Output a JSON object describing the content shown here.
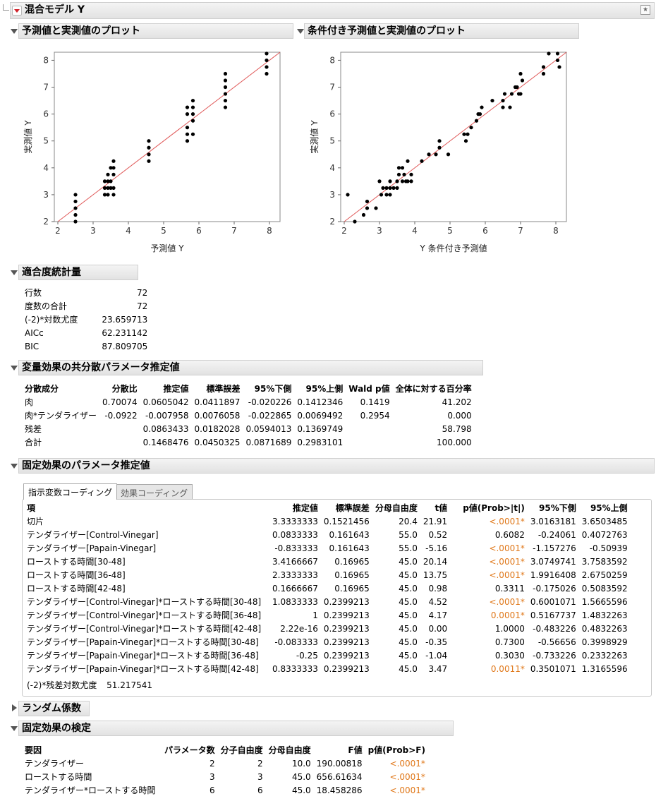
{
  "report": {
    "title": "混合モデル Y"
  },
  "plot1": {
    "title": "予測値と実測値のプロット",
    "xlabel": "予測値 Y",
    "ylabel": "実測値 Y"
  },
  "plot2": {
    "title": "条件付き予測値と実測値のプロット",
    "xlabel": "Y 条件付き予測値",
    "ylabel": "実測値 Y"
  },
  "chart_data": [
    {
      "type": "scatter",
      "title": "予測値と実測値のプロット",
      "xlabel": "予測値 Y",
      "ylabel": "実測値 Y",
      "xlim": [
        1.9,
        8.3
      ],
      "ylim": [
        2,
        8.3
      ],
      "xticks": [
        "2",
        "3",
        "4",
        "5",
        "6",
        "7",
        "8"
      ],
      "yticks": [
        "2",
        "3",
        "4",
        "5",
        "6",
        "7",
        "8"
      ],
      "reference_line": "y = x",
      "points": [
        [
          2.5,
          2.0
        ],
        [
          2.5,
          2.25
        ],
        [
          2.5,
          2.5
        ],
        [
          2.5,
          2.75
        ],
        [
          2.5,
          3.0
        ],
        [
          3.33,
          3.0
        ],
        [
          3.33,
          3.25
        ],
        [
          3.33,
          3.5
        ],
        [
          3.42,
          3.0
        ],
        [
          3.42,
          3.25
        ],
        [
          3.42,
          3.5
        ],
        [
          3.42,
          3.75
        ],
        [
          3.5,
          3.25
        ],
        [
          3.5,
          3.5
        ],
        [
          3.5,
          4.0
        ],
        [
          3.58,
          3.25
        ],
        [
          3.58,
          3.75
        ],
        [
          3.58,
          4.0
        ],
        [
          3.58,
          4.25
        ],
        [
          3.58,
          3.0
        ],
        [
          4.58,
          4.25
        ],
        [
          4.58,
          4.5
        ],
        [
          4.58,
          4.75
        ],
        [
          4.58,
          5.0
        ],
        [
          5.67,
          5.0
        ],
        [
          5.67,
          5.25
        ],
        [
          5.67,
          5.5
        ],
        [
          5.67,
          6.0
        ],
        [
          5.67,
          6.25
        ],
        [
          5.83,
          5.25
        ],
        [
          5.83,
          5.75
        ],
        [
          5.83,
          6.0
        ],
        [
          5.83,
          6.25
        ],
        [
          5.83,
          6.5
        ],
        [
          6.75,
          6.25
        ],
        [
          6.75,
          6.5
        ],
        [
          6.75,
          6.75
        ],
        [
          6.75,
          7.0
        ],
        [
          6.75,
          7.25
        ],
        [
          6.75,
          7.5
        ],
        [
          7.92,
          7.5
        ],
        [
          7.92,
          7.75
        ],
        [
          7.92,
          8.0
        ],
        [
          7.92,
          8.25
        ]
      ]
    },
    {
      "type": "scatter",
      "title": "条件付き予測値と実測値のプロット",
      "xlabel": "Y 条件付き予測値",
      "ylabel": "実測値 Y",
      "xlim": [
        1.9,
        8.3
      ],
      "ylim": [
        2,
        8.3
      ],
      "xticks": [
        "2",
        "3",
        "4",
        "5",
        "6",
        "7",
        "8"
      ],
      "yticks": [
        "2",
        "3",
        "4",
        "5",
        "6",
        "7",
        "8"
      ],
      "reference_line": "y = x",
      "points": [
        [
          2.1,
          3.0
        ],
        [
          2.3,
          2.0
        ],
        [
          2.55,
          2.25
        ],
        [
          2.65,
          2.5
        ],
        [
          2.65,
          2.75
        ],
        [
          2.9,
          2.5
        ],
        [
          3.0,
          3.5
        ],
        [
          3.05,
          3.0
        ],
        [
          3.1,
          3.25
        ],
        [
          3.2,
          3.0
        ],
        [
          3.2,
          3.25
        ],
        [
          3.3,
          3.0
        ],
        [
          3.3,
          3.25
        ],
        [
          3.3,
          3.5
        ],
        [
          3.4,
          3.25
        ],
        [
          3.5,
          3.25
        ],
        [
          3.5,
          3.5
        ],
        [
          3.55,
          3.75
        ],
        [
          3.55,
          4.0
        ],
        [
          3.65,
          3.5
        ],
        [
          3.65,
          4.0
        ],
        [
          3.7,
          3.75
        ],
        [
          3.75,
          3.5
        ],
        [
          3.8,
          3.5
        ],
        [
          3.8,
          4.25
        ],
        [
          3.9,
          3.75
        ],
        [
          3.9,
          3.5
        ],
        [
          4.2,
          4.25
        ],
        [
          4.4,
          4.5
        ],
        [
          4.6,
          4.5
        ],
        [
          4.7,
          4.75
        ],
        [
          4.7,
          5.0
        ],
        [
          4.95,
          4.5
        ],
        [
          5.4,
          5.25
        ],
        [
          5.45,
          5.0
        ],
        [
          5.5,
          5.25
        ],
        [
          5.6,
          5.5
        ],
        [
          5.75,
          5.75
        ],
        [
          5.8,
          6.0
        ],
        [
          5.85,
          6.0
        ],
        [
          5.9,
          6.25
        ],
        [
          6.2,
          6.5
        ],
        [
          6.5,
          6.5
        ],
        [
          6.5,
          6.25
        ],
        [
          6.55,
          6.75
        ],
        [
          6.7,
          6.25
        ],
        [
          6.75,
          6.75
        ],
        [
          6.85,
          7.0
        ],
        [
          6.9,
          7.0
        ],
        [
          6.95,
          6.75
        ],
        [
          7.0,
          7.5
        ],
        [
          7.0,
          6.75
        ],
        [
          7.05,
          7.25
        ],
        [
          7.65,
          7.5
        ],
        [
          7.65,
          7.75
        ],
        [
          7.8,
          8.25
        ],
        [
          8.05,
          8.0
        ],
        [
          8.05,
          8.25
        ],
        [
          8.1,
          7.75
        ]
      ]
    }
  ],
  "fit": {
    "title": "適合度統計量",
    "rows": [
      {
        "label": "行数",
        "value": "72"
      },
      {
        "label": "度数の合計",
        "value": "72"
      },
      {
        "label": "(-2)*対数尤度",
        "value": "23.659713"
      },
      {
        "label": "AICc",
        "value": "62.231142"
      },
      {
        "label": "BIC",
        "value": "87.809705"
      }
    ]
  },
  "cov": {
    "title": "変量効果の共分散パラメータ推定値",
    "headers": [
      "分散成分",
      "分散比",
      "推定値",
      "標準誤差",
      "95%下側",
      "95%上側",
      "Wald p値",
      "全体に対する百分率"
    ],
    "rows": [
      [
        "肉",
        "0.70074",
        "0.0605042",
        "0.0411897",
        "-0.020226",
        "0.1412346",
        "0.1419",
        "41.202"
      ],
      [
        "肉*テンダライザー",
        "-0.0922",
        "-0.007958",
        "0.0076058",
        "-0.022865",
        "0.0069492",
        "0.2954",
        "0.000"
      ],
      [
        "残差",
        "",
        "0.0863433",
        "0.0182028",
        "0.0594013",
        "0.1369749",
        "",
        "58.798"
      ],
      [
        "合計",
        "",
        "0.1468476",
        "0.0450325",
        "0.0871689",
        "0.2983101",
        "",
        "100.000"
      ]
    ]
  },
  "fixed": {
    "title": "固定効果のパラメータ推定値",
    "tabs": [
      "指示変数コーディング",
      "効果コーディング"
    ],
    "headers": [
      "項",
      "推定値",
      "標準誤差",
      "分母自由度",
      "t値",
      "p値(Prob>|t|)",
      "95%下側",
      "95%上側"
    ],
    "rows": [
      {
        "cells": [
          "切片",
          "3.3333333",
          "0.1521456",
          "20.4",
          "21.91",
          "<.0001*",
          "3.0163181",
          "3.6503485"
        ],
        "sig": true
      },
      {
        "cells": [
          "テンダライザー[Control-Vinegar]",
          "0.0833333",
          "0.161643",
          "55.0",
          "0.52",
          "0.6082",
          "-0.24061",
          "0.4072763"
        ],
        "sig": false
      },
      {
        "cells": [
          "テンダライザー[Papain-Vinegar]",
          "-0.833333",
          "0.161643",
          "55.0",
          "-5.16",
          "<.0001*",
          "-1.157276",
          "-0.50939"
        ],
        "sig": true
      },
      {
        "cells": [
          "ローストする時間[30-48]",
          "3.4166667",
          "0.16965",
          "45.0",
          "20.14",
          "<.0001*",
          "3.0749741",
          "3.7583592"
        ],
        "sig": true
      },
      {
        "cells": [
          "ローストする時間[36-48]",
          "2.3333333",
          "0.16965",
          "45.0",
          "13.75",
          "<.0001*",
          "1.9916408",
          "2.6750259"
        ],
        "sig": true
      },
      {
        "cells": [
          "ローストする時間[42-48]",
          "0.1666667",
          "0.16965",
          "45.0",
          "0.98",
          "0.3311",
          "-0.175026",
          "0.5083592"
        ],
        "sig": false
      },
      {
        "cells": [
          "テンダライザー[Control-Vinegar]*ローストする時間[30-48]",
          "1.0833333",
          "0.2399213",
          "45.0",
          "4.52",
          "<.0001*",
          "0.6001071",
          "1.5665596"
        ],
        "sig": true
      },
      {
        "cells": [
          "テンダライザー[Control-Vinegar]*ローストする時間[36-48]",
          "1",
          "0.2399213",
          "45.0",
          "4.17",
          "0.0001*",
          "0.5167737",
          "1.4832263"
        ],
        "sig": true
      },
      {
        "cells": [
          "テンダライザー[Control-Vinegar]*ローストする時間[42-48]",
          "2.22e-16",
          "0.2399213",
          "45.0",
          "0.00",
          "1.0000",
          "-0.483226",
          "0.4832263"
        ],
        "sig": false
      },
      {
        "cells": [
          "テンダライザー[Papain-Vinegar]*ローストする時間[30-48]",
          "-0.083333",
          "0.2399213",
          "45.0",
          "-0.35",
          "0.7300",
          "-0.56656",
          "0.3998929"
        ],
        "sig": false
      },
      {
        "cells": [
          "テンダライザー[Papain-Vinegar]*ローストする時間[36-48]",
          "-0.25",
          "0.2399213",
          "45.0",
          "-1.04",
          "0.3030",
          "-0.733226",
          "0.2332263"
        ],
        "sig": false
      },
      {
        "cells": [
          "テンダライザー[Papain-Vinegar]*ローストする時間[42-48]",
          "0.8333333",
          "0.2399213",
          "45.0",
          "3.47",
          "0.0011*",
          "0.3501071",
          "1.3165596"
        ],
        "sig": true
      }
    ],
    "residual_label": "(-2)*残差対数尤度",
    "residual_value": "51.217541"
  },
  "random": {
    "title": "ランダム係数"
  },
  "tests": {
    "title": "固定効果の検定",
    "headers": [
      "要因",
      "パラメータ数",
      "分子自由度",
      "分母自由度",
      "F値",
      "p値(Prob>F)"
    ],
    "rows": [
      [
        "テンダライザー",
        "2",
        "2",
        "10.0",
        "190.00818",
        "<.0001*"
      ],
      [
        "ローストする時間",
        "3",
        "3",
        "45.0",
        "656.61634",
        "<.0001*"
      ],
      [
        "テンダライザー*ローストする時間",
        "6",
        "6",
        "45.0",
        "18.458286",
        "<.0001*"
      ]
    ]
  },
  "colors": {
    "significant": "#e0781a",
    "refline": "#e05a5a",
    "header_bg": "#e6e6e6"
  }
}
